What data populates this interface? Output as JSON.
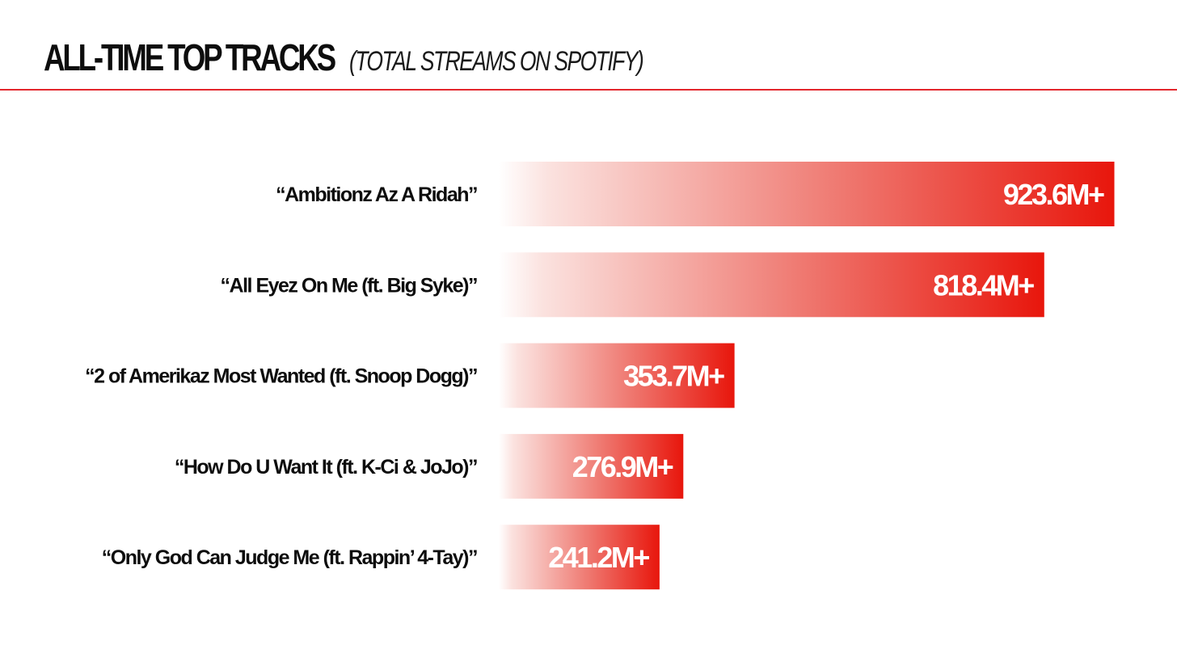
{
  "header": {
    "title": "ALL-TIME TOP TRACKS",
    "subtitle": "(TOTAL STREAMS ON SPOTIFY)"
  },
  "colors": {
    "accent": "#e8160c",
    "rule": "#e3262c",
    "text": "#0d0d0d",
    "value_text": "#ffffff"
  },
  "chart_data": {
    "type": "bar",
    "orientation": "horizontal",
    "title": "ALL-TIME TOP TRACKS",
    "subtitle": "(TOTAL STREAMS ON SPOTIFY)",
    "xlabel": "",
    "ylabel": "",
    "grid": false,
    "legend": "none",
    "xlim": [
      0,
      1000
    ],
    "categories": [
      "“Ambitionz Az A Ridah”",
      "“All Eyez On Me (ft. Big Syke)”",
      "“2 of Amerikaz Most Wanted (ft. Snoop Dogg)”",
      "“How Do U Want It (ft. K-Ci & JoJo)”",
      "“Only God Can Judge Me (ft. Rappin’ 4-Tay)”"
    ],
    "values": [
      923.6,
      818.4,
      353.7,
      276.9,
      241.2
    ],
    "value_labels": [
      "923.6M+",
      "818.4M+",
      "353.7M+",
      "276.9M+",
      "241.2M+"
    ],
    "unit": "M"
  }
}
